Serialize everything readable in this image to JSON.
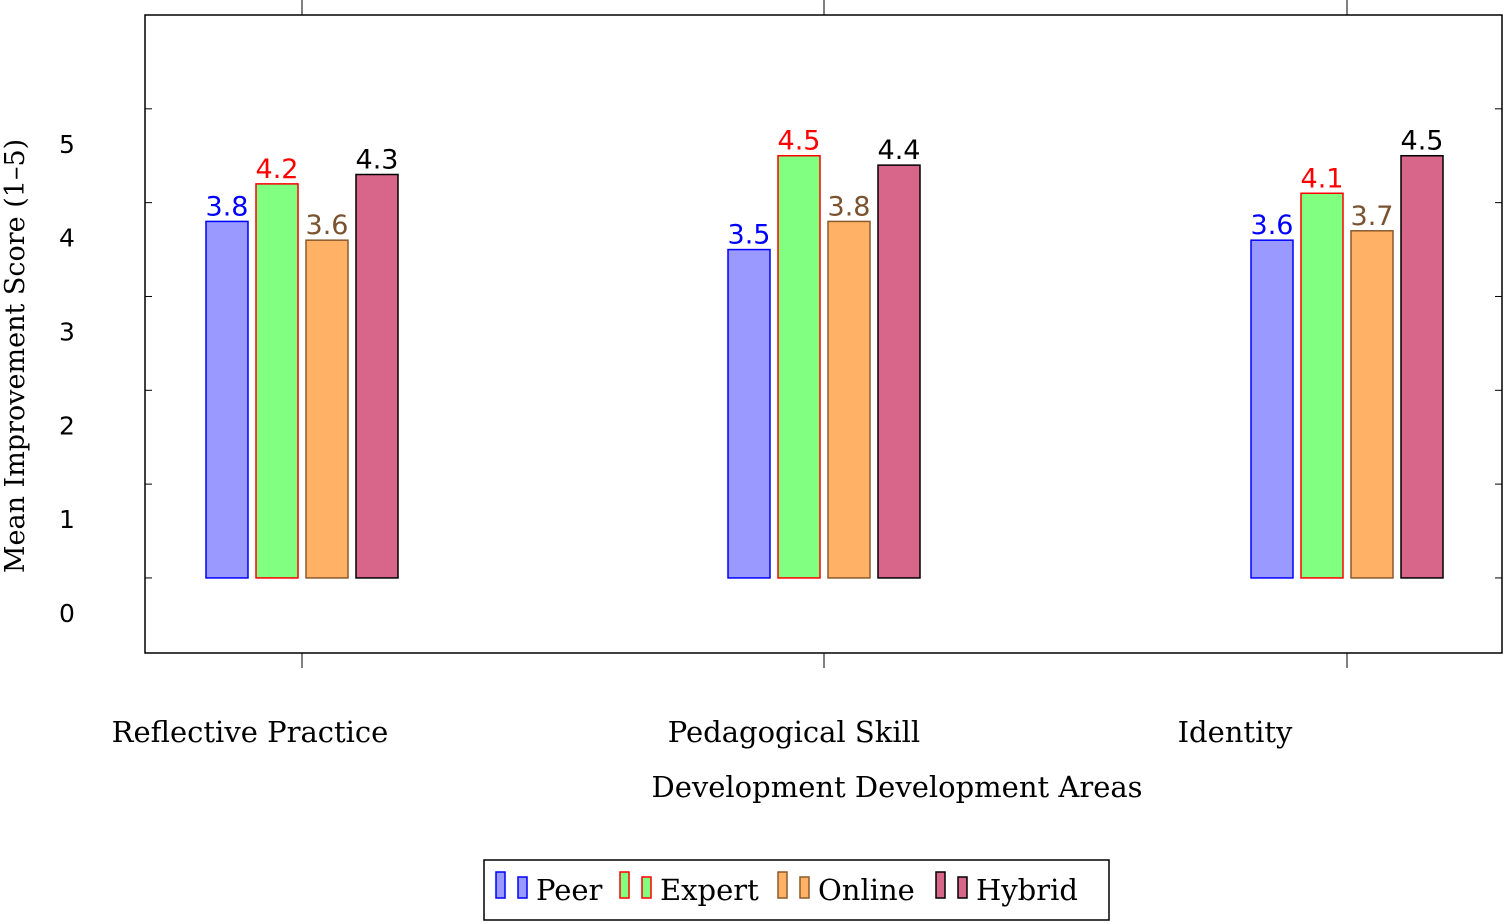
{
  "chart_data": {
    "type": "bar",
    "xlabel": "Development Development Areas",
    "ylabel": "Mean Improvement Score (1–5)",
    "categories": [
      "Reflective Practice",
      "Pedagogical Skill",
      "Identity"
    ],
    "ylim": [
      -0.8,
      6
    ],
    "yticks": [
      0,
      1,
      2,
      3,
      4,
      5
    ],
    "grid": false,
    "legend_position": "bottom-center",
    "series": [
      {
        "name": "Peer",
        "values": [
          3.8,
          3.5,
          3.6
        ],
        "labels": [
          "3.8",
          "3.5",
          "3.6"
        ],
        "fill": "#9999ff",
        "stroke": "#0000ff",
        "label_color": "#0000ff"
      },
      {
        "name": "Expert",
        "values": [
          4.2,
          4.5,
          4.1
        ],
        "labels": [
          "4.2",
          "4.5",
          "4.1"
        ],
        "fill": "#80ff80",
        "stroke": "#ff0000",
        "label_color": "#ff0000"
      },
      {
        "name": "Online",
        "values": [
          3.6,
          3.8,
          3.7
        ],
        "labels": [
          "3.6",
          "3.8",
          "3.7"
        ],
        "fill": "#ffb266",
        "stroke": "#8b5a2b",
        "label_color": "#7a5230"
      },
      {
        "name": "Hybrid",
        "values": [
          4.3,
          4.4,
          4.5
        ],
        "labels": [
          "4.3",
          "4.4",
          "4.5"
        ],
        "fill": "#d8668a",
        "stroke": "#000000",
        "label_color": "#000000"
      }
    ]
  }
}
